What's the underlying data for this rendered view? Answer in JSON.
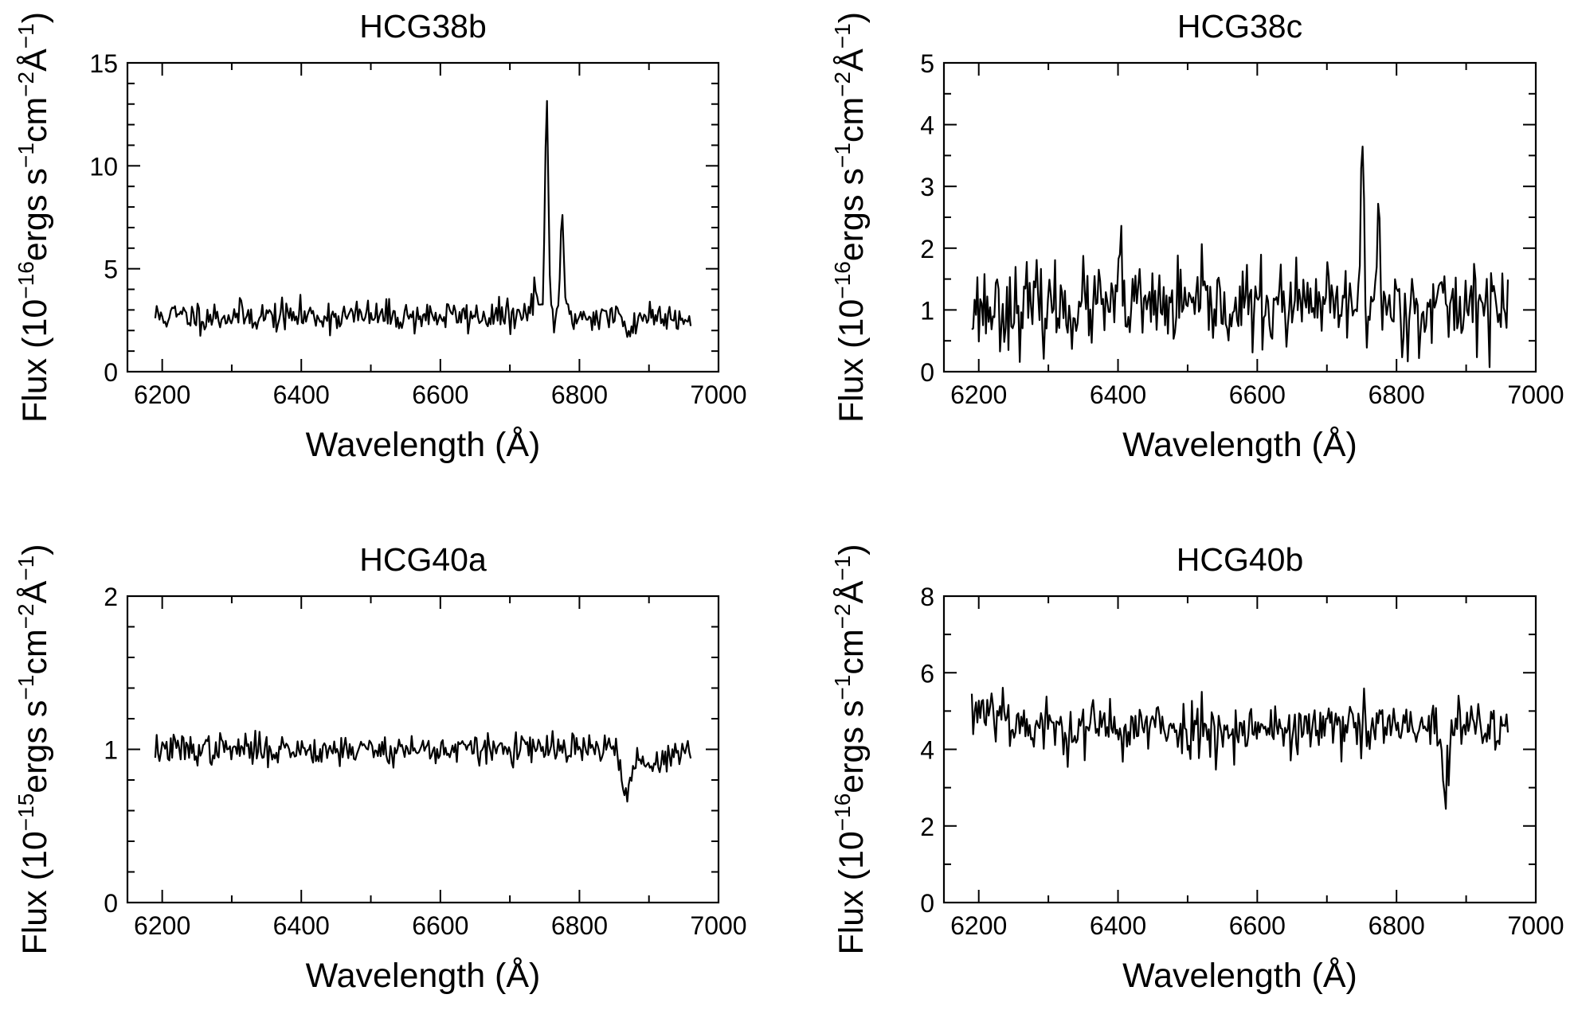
{
  "figure": {
    "background": "#ffffff",
    "line_color": "#000000"
  },
  "chart_data": [
    {
      "type": "line",
      "title": "HCG38b",
      "xlabel": "Wavelength (Å)",
      "ylabel": {
        "prefix": "Flux (10",
        "exp1": "−16",
        "mid1": "ergs s",
        "exp2": "−1",
        "mid2": "cm",
        "exp3": "−2",
        "mid3": "Å",
        "exp4": "−1",
        "suffix": ")"
      },
      "xlim": [
        6150,
        7000
      ],
      "ylim": [
        0,
        15
      ],
      "xticks": [
        6200,
        6400,
        6600,
        6800,
        7000
      ],
      "yticks": [
        0,
        5,
        10,
        15
      ],
      "xminor": [
        6300,
        6500,
        6700,
        6900
      ],
      "yminor": [
        1,
        2,
        3,
        4,
        6,
        7,
        8,
        9,
        11,
        12,
        13,
        14
      ],
      "series": [
        {
          "name": "HCG38b",
          "x_start": 6190,
          "x_end": 6960,
          "baseline": 2.7,
          "noise": 0.38,
          "features": [
            {
              "center": 6736,
              "amp": 1.6,
              "sigma": 3.5
            },
            {
              "center": 6753,
              "amp": 10.6,
              "sigma": 2.3
            },
            {
              "center": 6775,
              "amp": 5.2,
              "sigma": 2.4
            },
            {
              "center": 6870,
              "amp": -0.8,
              "sigma": 6
            }
          ],
          "seed": 11
        }
      ]
    },
    {
      "type": "line",
      "title": "HCG38c",
      "xlabel": "Wavelength (Å)",
      "ylabel": {
        "prefix": "Flux (10",
        "exp1": "−16",
        "mid1": "ergs s",
        "exp2": "−1",
        "mid2": "cm",
        "exp3": "−2",
        "mid3": "Å",
        "exp4": "−1",
        "suffix": ")"
      },
      "xlim": [
        6150,
        7000
      ],
      "ylim": [
        0,
        5
      ],
      "xticks": [
        6200,
        6400,
        6600,
        6800,
        7000
      ],
      "yticks": [
        0,
        1,
        2,
        3,
        4,
        5
      ],
      "xminor": [
        6300,
        6500,
        6700,
        6900
      ],
      "yminor": [
        0.5,
        1.5,
        2.5,
        3.5,
        4.5
      ],
      "series": [
        {
          "name": "HCG38c",
          "x_start": 6190,
          "x_end": 6960,
          "baseline": 1.05,
          "noise": 0.33,
          "features": [
            {
              "center": 6404,
              "amp": 1.0,
              "sigma": 1.5
            },
            {
              "center": 6751,
              "amp": 2.9,
              "sigma": 2.0
            },
            {
              "center": 6774,
              "amp": 1.7,
              "sigma": 2.0
            },
            {
              "center": 6911,
              "amp": 0.9,
              "sigma": 1.5
            }
          ],
          "seed": 23
        }
      ]
    },
    {
      "type": "line",
      "title": "HCG40a",
      "xlabel": "Wavelength (Å)",
      "ylabel": {
        "prefix": "Flux (10",
        "exp1": "−15",
        "mid1": "ergs s",
        "exp2": "−1",
        "mid2": "cm",
        "exp3": "−2",
        "mid3": "Å",
        "exp4": "−1",
        "suffix": ")"
      },
      "xlim": [
        6150,
        7000
      ],
      "ylim": [
        0,
        2
      ],
      "xticks": [
        6200,
        6400,
        6600,
        6800,
        7000
      ],
      "yticks": [
        0,
        1,
        2
      ],
      "xminor": [
        6300,
        6500,
        6700,
        6900
      ],
      "yminor": [
        0.2,
        0.4,
        0.6,
        0.8,
        1.2,
        1.4,
        1.6,
        1.8
      ],
      "series": [
        {
          "name": "HCG40a",
          "x_start": 6190,
          "x_end": 6960,
          "baseline": 1.0,
          "noise": 0.05,
          "features": [
            {
              "center": 6868,
              "amp": -0.32,
              "sigma": 5
            },
            {
              "center": 6900,
              "amp": -0.12,
              "sigma": 18
            }
          ],
          "seed": 37
        }
      ]
    },
    {
      "type": "line",
      "title": "HCG40b",
      "xlabel": "Wavelength (Å)",
      "ylabel": {
        "prefix": "Flux (10",
        "exp1": "−16",
        "mid1": "ergs s",
        "exp2": "−1",
        "mid2": "cm",
        "exp3": "−2",
        "mid3": "Å",
        "exp4": "−1",
        "suffix": ")"
      },
      "xlim": [
        6150,
        7000
      ],
      "ylim": [
        0,
        8
      ],
      "xticks": [
        6200,
        6400,
        6600,
        6800,
        7000
      ],
      "yticks": [
        0,
        2,
        4,
        6,
        8
      ],
      "xminor": [
        6300,
        6500,
        6700,
        6900
      ],
      "yminor": [
        1,
        3,
        5,
        7
      ],
      "series": [
        {
          "name": "HCG40b",
          "x_start": 6190,
          "x_end": 6960,
          "baseline": 4.55,
          "noise": 0.38,
          "features": [
            {
              "center": 6215,
              "amp": 0.6,
              "sigma": 25
            },
            {
              "center": 6870,
              "amp": -1.8,
              "sigma": 4
            }
          ],
          "seed": 53
        }
      ]
    }
  ]
}
